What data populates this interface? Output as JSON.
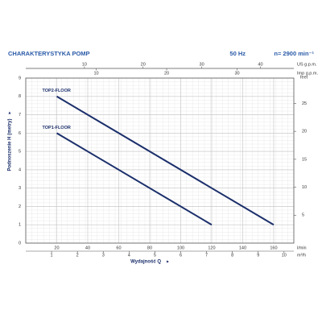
{
  "chart_data": {
    "type": "line",
    "title": "CHARAKTERYSTYKA POMP",
    "frequency": "50 Hz",
    "speed": "n= 2900 min⁻¹",
    "xlabel": "Wydajność Q",
    "ylabel": "Podnoszenie H (metry)",
    "x_unit": "l/min",
    "xlim": [
      0,
      173
    ],
    "xticks": [
      20,
      40,
      60,
      80,
      100,
      120,
      140,
      160
    ],
    "ylim": [
      0,
      9
    ],
    "yticks": [
      0,
      1,
      2,
      3,
      4,
      5,
      6,
      7,
      8,
      9
    ],
    "grid": true,
    "x2": {
      "unit": "m³/h",
      "lim": [
        0,
        10.38
      ],
      "ticks": [
        1,
        2,
        3,
        4,
        5,
        6,
        7,
        8,
        9,
        10
      ]
    },
    "x3": {
      "unit": "US g.p.m.",
      "lim": [
        0,
        45.7
      ],
      "ticks": [
        10,
        20,
        30,
        40
      ]
    },
    "x4": {
      "unit": "Imp g.p.m.",
      "lim": [
        0,
        38.05
      ],
      "ticks": [
        10,
        20,
        30
      ]
    },
    "y2": {
      "unit": "feet",
      "lim": [
        0,
        29.53
      ],
      "ticks": [
        5,
        10,
        15,
        20,
        25
      ]
    },
    "series": [
      {
        "name": "TOP2-FLOOR",
        "color": "#1b2f6b",
        "x": [
          20,
          160
        ],
        "values": [
          8,
          1
        ]
      },
      {
        "name": "TOP1-FLOOR",
        "color": "#1b2f6b",
        "x": [
          20,
          120
        ],
        "values": [
          6,
          1
        ]
      }
    ]
  }
}
